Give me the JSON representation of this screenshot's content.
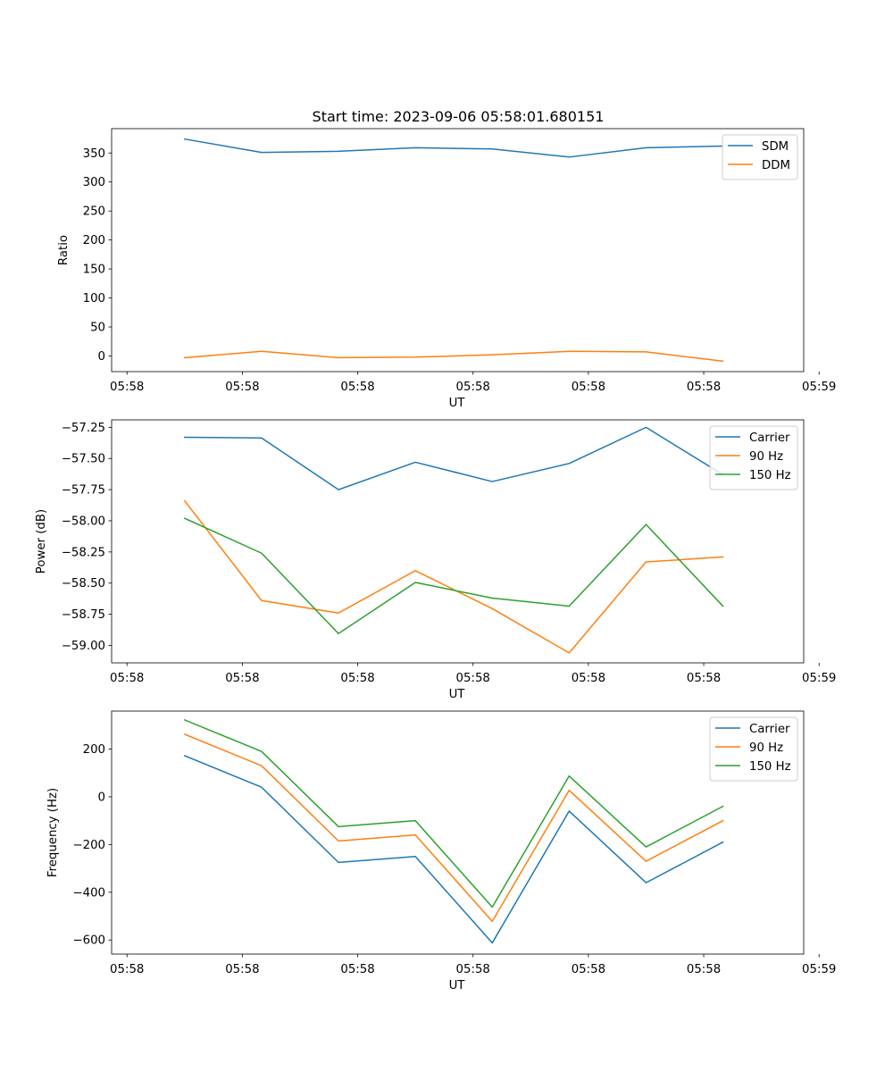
{
  "figure": {
    "title": "Start time: 2023-09-06 05:58:01.680151"
  },
  "colors": {
    "blue": "#1f77b4",
    "orange": "#ff7f0e",
    "green": "#2ca02c"
  },
  "chart_data": [
    {
      "type": "line",
      "title": "Start time: 2023-09-06 05:58:01.680151",
      "xlabel": "UT",
      "ylabel": "Ratio",
      "xlim": [
        -0.2,
        8.8
      ],
      "x": [
        0.75,
        1.75,
        2.75,
        3.75,
        4.75,
        5.75,
        6.75,
        7.75
      ],
      "xticks": [
        0,
        1.5,
        3,
        4.5,
        6,
        7.5,
        9
      ],
      "xtick_labels": [
        "05:58",
        "05:58",
        "05:58",
        "05:58",
        "05:58",
        "05:58",
        "05:59"
      ],
      "ylim": [
        -27,
        392
      ],
      "yticks": [
        0,
        50,
        100,
        150,
        200,
        250,
        300,
        350
      ],
      "ytick_labels": [
        "0",
        "50",
        "100",
        "150",
        "200",
        "250",
        "300",
        "350"
      ],
      "legend": "top-right",
      "series": [
        {
          "name": "SDM",
          "color": "#1f77b4",
          "values": [
            374,
            351,
            353,
            359,
            357,
            343,
            359,
            362
          ]
        },
        {
          "name": "DDM",
          "color": "#ff7f0e",
          "values": [
            -3,
            8,
            -3,
            -2,
            2,
            8,
            7,
            -9
          ]
        }
      ]
    },
    {
      "type": "line",
      "title": "",
      "xlabel": "UT",
      "ylabel": "Power (dB)",
      "xlim": [
        -0.2,
        8.8
      ],
      "x": [
        0.75,
        1.75,
        2.75,
        3.75,
        4.75,
        5.75,
        6.75,
        7.75
      ],
      "xticks": [
        0,
        1.5,
        3,
        4.5,
        6,
        7.5,
        9
      ],
      "xtick_labels": [
        "05:58",
        "05:58",
        "05:58",
        "05:58",
        "05:58",
        "05:58",
        "05:59"
      ],
      "ylim": [
        -59.14,
        -57.19
      ],
      "yticks": [
        -59.0,
        -58.75,
        -58.5,
        -58.25,
        -58.0,
        -57.75,
        -57.5,
        -57.25
      ],
      "ytick_labels": [
        "−59.00",
        "−58.75",
        "−58.50",
        "−58.25",
        "−58.00",
        "−57.75",
        "−57.50",
        "−57.25"
      ],
      "legend": "top-right",
      "series": [
        {
          "name": "Carrier",
          "color": "#1f77b4",
          "values": [
            -57.33,
            -57.335,
            -57.75,
            -57.53,
            -57.685,
            -57.54,
            -57.25,
            -57.63
          ]
        },
        {
          "name": "90 Hz",
          "color": "#ff7f0e",
          "values": [
            -57.84,
            -58.64,
            -58.74,
            -58.4,
            -58.705,
            -59.06,
            -58.33,
            -58.29
          ]
        },
        {
          "name": "150 Hz",
          "color": "#2ca02c",
          "values": [
            -57.98,
            -58.26,
            -58.905,
            -58.495,
            -58.62,
            -58.685,
            -58.03,
            -58.685
          ]
        }
      ]
    },
    {
      "type": "line",
      "title": "",
      "xlabel": "UT",
      "ylabel": "Frequency (Hz)",
      "xlim": [
        -0.2,
        8.8
      ],
      "x": [
        0.75,
        1.75,
        2.75,
        3.75,
        4.75,
        5.75,
        6.75,
        7.75
      ],
      "xticks": [
        0,
        1.5,
        3,
        4.5,
        6,
        7.5,
        9
      ],
      "xtick_labels": [
        "05:58",
        "05:58",
        "05:58",
        "05:58",
        "05:58",
        "05:58",
        "05:59"
      ],
      "ylim": [
        -659,
        359
      ],
      "yticks": [
        -600,
        -400,
        -200,
        0,
        200
      ],
      "ytick_labels": [
        "−600",
        "−400",
        "−200",
        "0",
        "200"
      ],
      "legend": "top-right",
      "series": [
        {
          "name": "Carrier",
          "color": "#1f77b4",
          "values": [
            172,
            40,
            -275,
            -250,
            -612,
            -60,
            -360,
            -190
          ]
        },
        {
          "name": "90 Hz",
          "color": "#ff7f0e",
          "values": [
            262,
            130,
            -185,
            -160,
            -522,
            27,
            -270,
            -100
          ]
        },
        {
          "name": "150 Hz",
          "color": "#2ca02c",
          "values": [
            322,
            190,
            -125,
            -100,
            -462,
            87,
            -210,
            -40
          ]
        }
      ]
    }
  ]
}
